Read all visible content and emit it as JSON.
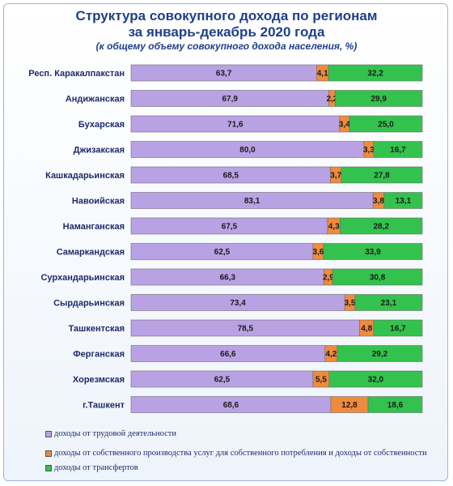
{
  "title_line1": "Структура совокупного дохода по регионам",
  "title_line2": "за январь-декабрь 2020 года",
  "subtitle": "(к общему объему совокупного дохода населения, %)",
  "colors": {
    "labor": "#b9a2e4",
    "own": "#f08a3c",
    "transfer": "#33c24d",
    "label": "#1d2a6b"
  },
  "chart_data": {
    "type": "bar",
    "orientation": "horizontal",
    "stacked": true,
    "xlim": [
      0,
      100
    ],
    "legend_position": "bottom",
    "categories": [
      "Респ. Каракалпакстан",
      "Андижанская",
      "Бухарская",
      "Джизакская",
      "Кашкадарьинская",
      "Навоийская",
      "Наманганская",
      "Самаркандская",
      "Сурхандарьинская",
      "Сырдарьинская",
      "Ташкентская",
      "Ферганская",
      "Хорезмская",
      "г.Ташкент"
    ],
    "value_labels": [
      [
        "63,7",
        "4,1",
        "32,2"
      ],
      [
        "67,9",
        "2,2",
        "29,9"
      ],
      [
        "71,6",
        "3,4",
        "25,0"
      ],
      [
        "80,0",
        "3,3",
        "16,7"
      ],
      [
        "68,5",
        "3,7",
        "27,8"
      ],
      [
        "83,1",
        "3,8",
        "13,1"
      ],
      [
        "67,5",
        "4,3",
        "28,2"
      ],
      [
        "62,5",
        "3,6",
        "33,9"
      ],
      [
        "66,3",
        "2,9",
        "30,8"
      ],
      [
        "73,4",
        "3,5",
        "23,1"
      ],
      [
        "78,5",
        "4,8",
        "16,7"
      ],
      [
        "66,6",
        "4,2",
        "29,2"
      ],
      [
        "62,5",
        "5,5",
        "32,0"
      ],
      [
        "68,6",
        "12,8",
        "18,6"
      ]
    ],
    "series": [
      {
        "name": "доходы от трудовой деятельности",
        "values": [
          63.7,
          67.9,
          71.6,
          80.0,
          68.5,
          83.1,
          67.5,
          62.5,
          66.3,
          73.4,
          78.5,
          66.6,
          62.5,
          68.6
        ]
      },
      {
        "name": "доходы от собственного производства услуг для собственного потребления и доходы от собственности",
        "values": [
          4.1,
          2.2,
          3.4,
          3.3,
          3.7,
          3.8,
          4.3,
          3.6,
          2.9,
          3.5,
          4.8,
          4.2,
          5.5,
          12.8
        ]
      },
      {
        "name": "доходы от трансфертов",
        "values": [
          32.2,
          29.9,
          25.0,
          16.7,
          27.8,
          13.1,
          28.2,
          33.9,
          30.8,
          23.1,
          16.7,
          29.2,
          32.0,
          18.6
        ]
      }
    ]
  }
}
